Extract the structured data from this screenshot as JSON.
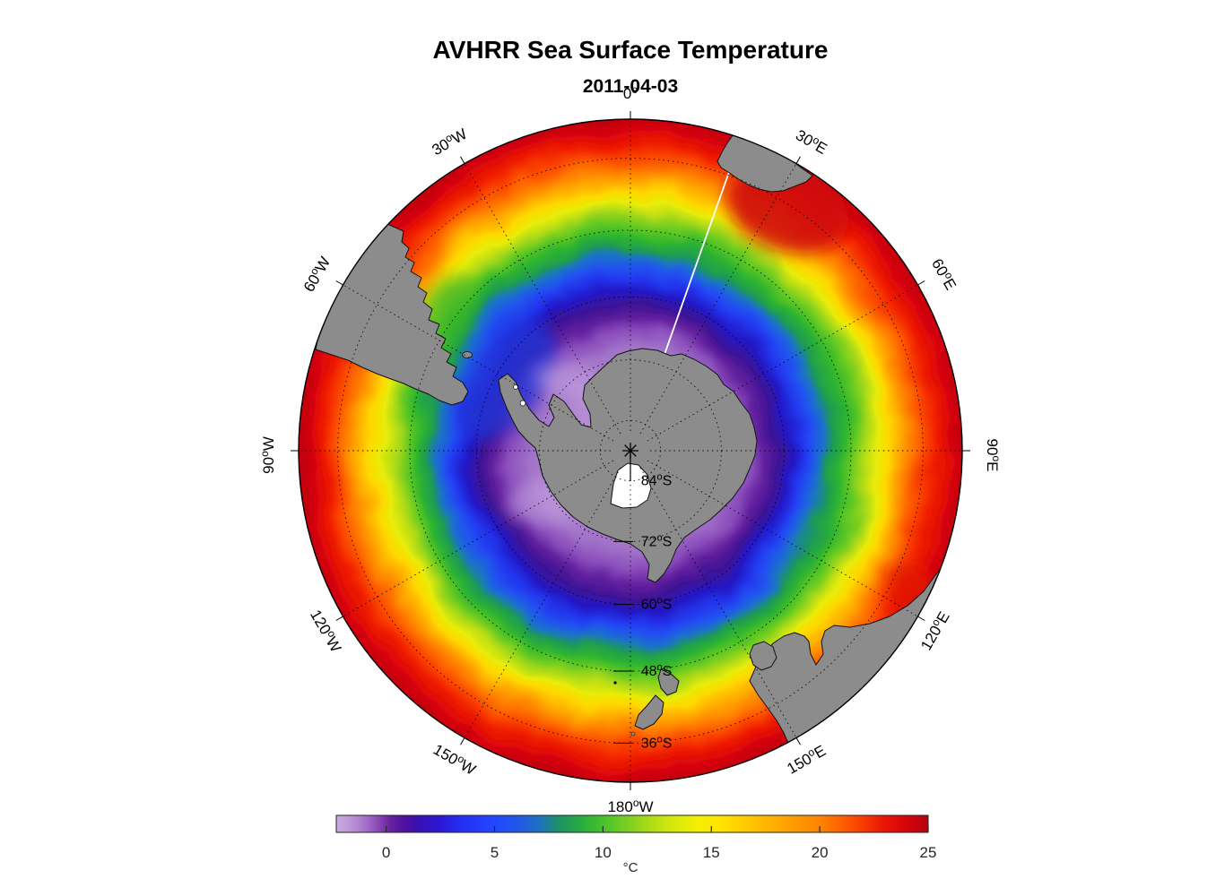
{
  "page": {
    "title": "AVHRR Sea Surface Temperature",
    "subtitle": "2011-04-03"
  },
  "map": {
    "projection": "south polar stereographic, pole-centered, 0° longitude at top, outer edge near 30°S",
    "land_color": "#8c8c8c",
    "coastline_color": "#111111",
    "ice_color": "#ffffff",
    "seam_line": "white meridian line near 20°E from pole to African coast",
    "longitude_labels": [
      {
        "deg": "0",
        "hemi": "",
        "az": 0,
        "rot": 0
      },
      {
        "deg": "30",
        "hemi": "E",
        "az": 30,
        "rot": 30
      },
      {
        "deg": "60",
        "hemi": "E",
        "az": 60,
        "rot": 60
      },
      {
        "deg": "90",
        "hemi": "E",
        "az": 90,
        "rot": 90
      },
      {
        "deg": "120",
        "hemi": "E",
        "az": 120,
        "rot": -60
      },
      {
        "deg": "150",
        "hemi": "E",
        "az": 150,
        "rot": -30
      },
      {
        "deg": "180",
        "hemi": "W",
        "az": 180,
        "rot": 0
      },
      {
        "deg": "150",
        "hemi": "W",
        "az": 210,
        "rot": 30
      },
      {
        "deg": "120",
        "hemi": "W",
        "az": 240,
        "rot": 60
      },
      {
        "deg": "90",
        "hemi": "W",
        "az": 270,
        "rot": -90
      },
      {
        "deg": "60",
        "hemi": "W",
        "az": 300,
        "rot": -60
      },
      {
        "deg": "30",
        "hemi": "W",
        "az": 330,
        "rot": -30
      }
    ],
    "latitude_labels": [
      {
        "deg": "84",
        "hemi": "S",
        "f": 0.091,
        "tick": false
      },
      {
        "deg": "72",
        "hemi": "S",
        "f": 0.274,
        "tick": true
      },
      {
        "deg": "60",
        "hemi": "S",
        "f": 0.464,
        "tick": true
      },
      {
        "deg": "48",
        "hemi": "S",
        "f": 0.665,
        "tick": true
      },
      {
        "deg": "36",
        "hemi": "S",
        "f": 0.882,
        "tick": true
      }
    ]
  },
  "colorbar": {
    "min": -2.3,
    "max": 25,
    "ticks": [
      0,
      5,
      10,
      15,
      20,
      25
    ],
    "unit": "°C",
    "border_color": "#262626",
    "tick_label_color": "#262626",
    "stops": [
      [
        -2.3,
        "#c9aadf"
      ],
      [
        -1.8,
        "#c09bda"
      ],
      [
        -1.4,
        "#b58ad3"
      ],
      [
        -1.0,
        "#a673c9"
      ],
      [
        -0.6,
        "#9459bd"
      ],
      [
        -0.2,
        "#7f3bae"
      ],
      [
        0.2,
        "#68219e"
      ],
      [
        0.8,
        "#4f129e"
      ],
      [
        1.5,
        "#3a0fb2"
      ],
      [
        2.5,
        "#2b17d8"
      ],
      [
        3.5,
        "#2430f2"
      ],
      [
        5,
        "#2247ff"
      ],
      [
        6,
        "#2156e8"
      ],
      [
        7,
        "#1e6fc8"
      ],
      [
        8,
        "#1e9263"
      ],
      [
        9,
        "#27ad3f"
      ],
      [
        10,
        "#46c22b"
      ],
      [
        11.5,
        "#8dd31e"
      ],
      [
        13,
        "#cfe70e"
      ],
      [
        14.5,
        "#f7ef02"
      ],
      [
        15.5,
        "#ffe200"
      ],
      [
        17,
        "#ffc100"
      ],
      [
        18.5,
        "#ffa000"
      ],
      [
        20,
        "#ff8300"
      ],
      [
        21,
        "#ff6000"
      ],
      [
        22,
        "#f83b00"
      ],
      [
        23,
        "#e81505"
      ],
      [
        24,
        "#d4050b"
      ],
      [
        25,
        "#b8000d"
      ]
    ]
  },
  "chart_data": {
    "type": "heatmap",
    "title": "AVHRR Sea Surface Temperature",
    "date": "2011-04-03",
    "units": "°C",
    "projection": "south polar stereographic map of the Southern Ocean, pole at center, 0° longitude at top, rim near 30°S",
    "colorbar_range_c": [
      -2.3,
      25
    ],
    "colorbar_ticks_c": [
      0,
      5,
      10,
      15,
      20,
      25
    ],
    "graticule": {
      "ring_fractions": [
        0.091,
        0.274,
        0.464,
        0.665,
        0.882
      ],
      "ring_labels": [
        "84°S",
        "72°S",
        "60°S",
        "48°S",
        "36°S"
      ],
      "meridian_step_deg": 30,
      "style": "dotted black"
    },
    "radial_profile": {
      "description": "approximate zonal-mean SST by latitude ring read from the image",
      "rings": [
        {
          "lat": "84°S",
          "sst_c": -1.8
        },
        {
          "lat": "72°S",
          "sst_c": -1.5
        },
        {
          "lat": "60°S",
          "sst_c": 1.5
        },
        {
          "lat": "48°S",
          "sst_c": 9
        },
        {
          "lat": "36°S",
          "sst_c": 17
        },
        {
          "lat": "30°S (rim)",
          "sst_c": 23
        }
      ],
      "stops": [
        [
          0.0,
          "#c9a6e0"
        ],
        [
          0.09,
          "#bd95d8"
        ],
        [
          0.2,
          "#b287d2"
        ],
        [
          0.3,
          "#a172c8"
        ],
        [
          0.36,
          "#8a4dbb"
        ],
        [
          0.4,
          "#63219f"
        ],
        [
          0.44,
          "#3d1195"
        ],
        [
          0.48,
          "#2418c6"
        ],
        [
          0.52,
          "#2137ee"
        ],
        [
          0.55,
          "#2052f0"
        ],
        [
          0.58,
          "#1e72c9"
        ],
        [
          0.61,
          "#1f9c52"
        ],
        [
          0.645,
          "#2eb430"
        ],
        [
          0.68,
          "#62c922"
        ],
        [
          0.71,
          "#a5d81a"
        ],
        [
          0.745,
          "#e8ec08"
        ],
        [
          0.775,
          "#ffd800"
        ],
        [
          0.81,
          "#ffab00"
        ],
        [
          0.845,
          "#ff7c00"
        ],
        [
          0.88,
          "#fb4a00"
        ],
        [
          0.92,
          "#ef1c02"
        ],
        [
          0.96,
          "#dd0708"
        ],
        [
          1.0,
          "#c4000c"
        ]
      ]
    },
    "land_features": [
      "Antarctica with Antarctic Peninsula (gray, center)",
      "Ross Ice Shelf (white patch south of pole)",
      "South America / Patagonia (upper left rim, ~60°W)",
      "Falkland Islands (small islet east of Patagonia)",
      "Southern Africa (upper right rim, ~20–30°E)",
      "Australia (lower right rim, ~115–150°E) with Tasmania",
      "New Zealand (bottom, ~170°E)"
    ]
  }
}
